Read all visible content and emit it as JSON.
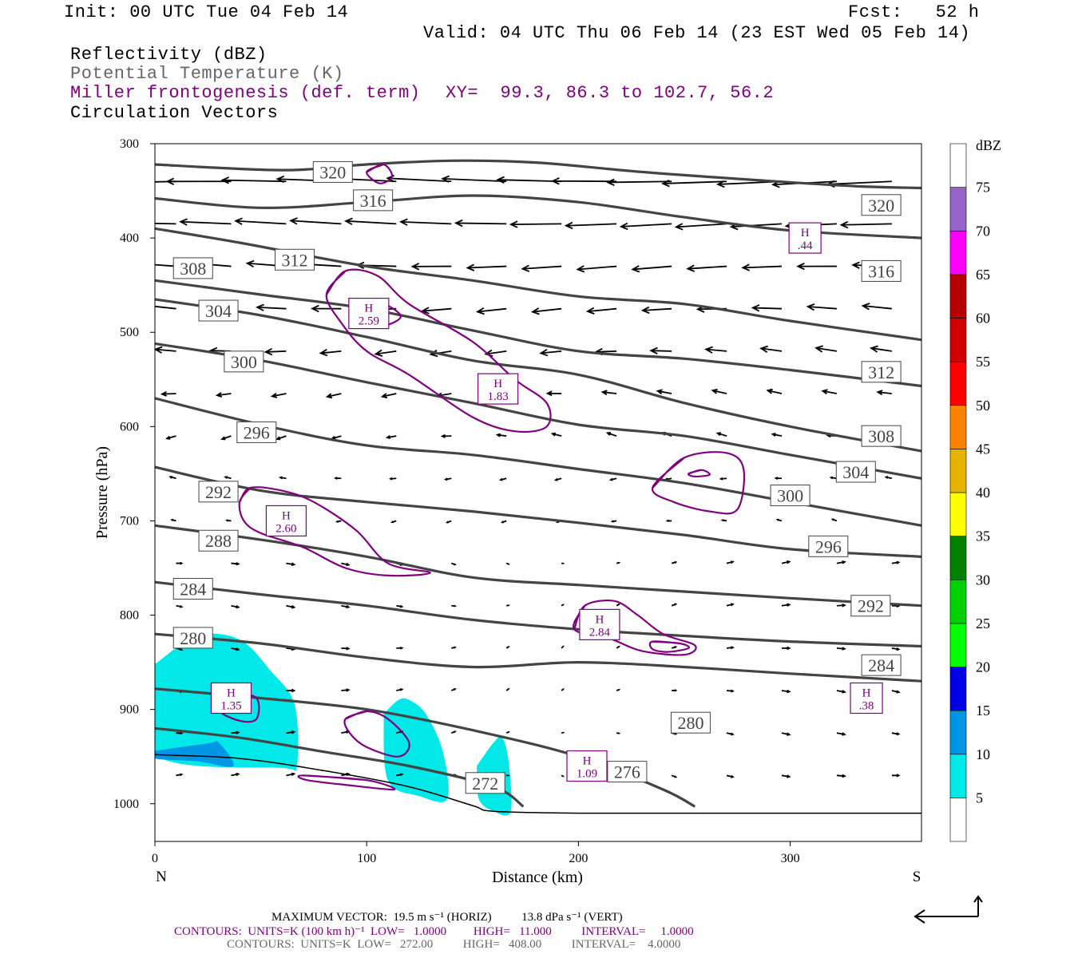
{
  "header": {
    "init": "Init: 00 UTC Tue 04 Feb 14",
    "fcst": "Fcst:   52 h",
    "valid": "Valid: 04 UTC Thu 06 Feb 14 (23 EST Wed 05 Feb 14)",
    "field1": "Reflectivity (dBZ)",
    "field2": "Potential Temperature (K)",
    "field3": "Miller frontogenesis (def. term)",
    "xy": "XY=  99.3, 86.3 to 102.7, 56.2",
    "field4": "Circulation Vectors"
  },
  "footer": {
    "maxvec": "MAXIMUM VECTOR:  19.5 m s⁻¹ (HORIZ)          13.8 dPa s⁻¹ (VERT)",
    "contours1": "CONTOURS:  UNITS=K (100 km h)⁻¹  LOW=   1.0000         HIGH=   11.000          INTERVAL=     1.0000",
    "contours2": "CONTOURS:  UNITS=K  LOW=   272.00          HIGH=   408.00          INTERVAL=    4.0000"
  },
  "colors": {
    "theta": "#444444",
    "fronto": "#800080",
    "refl5": "#00e8e8",
    "refl10": "#0096e6"
  },
  "chart_data": {
    "type": "cross-section",
    "xlabel": "Distance (km)",
    "ylabel": "Pressure (hPa)",
    "x_left_label": "N",
    "x_right_label": "S",
    "xlim": [
      0,
      362
    ],
    "ylim": [
      300,
      1040
    ],
    "xticks": [
      0,
      100,
      200,
      300
    ],
    "yticks": [
      300,
      400,
      500,
      600,
      700,
      800,
      900,
      1000
    ],
    "colorbar": {
      "unit": "dBZ",
      "levels": [
        5,
        10,
        15,
        20,
        25,
        30,
        35,
        40,
        45,
        50,
        55,
        60,
        65,
        70,
        75
      ],
      "colors": [
        "#00e8e8",
        "#0096e6",
        "#0000e6",
        "#00ff00",
        "#00d200",
        "#008200",
        "#ffff00",
        "#e6b400",
        "#ff8200",
        "#ff0000",
        "#d20000",
        "#b40000",
        "#ff00ff",
        "#9664c8",
        "#ffffff"
      ]
    },
    "theta_lines": [
      {
        "label": "320",
        "x": [
          0,
          60,
          100,
          140,
          180,
          230,
          280,
          330,
          362
        ],
        "y": [
          322,
          328,
          322,
          318,
          320,
          330,
          338,
          345,
          347
        ]
      },
      {
        "label": "316",
        "x": [
          0,
          50,
          100,
          150,
          200,
          250,
          300,
          362
        ],
        "y": [
          358,
          368,
          362,
          355,
          362,
          378,
          392,
          400
        ]
      },
      {
        "label": "312",
        "x": [
          0,
          40,
          100,
          150,
          200,
          250,
          300,
          362
        ],
        "y": [
          390,
          405,
          430,
          445,
          462,
          470,
          488,
          508
        ]
      },
      {
        "label": "308",
        "x": [
          0,
          50,
          100,
          150,
          200,
          250,
          300,
          362
        ],
        "y": [
          445,
          460,
          475,
          498,
          520,
          528,
          540,
          557
        ]
      },
      {
        "label": "304",
        "x": [
          0,
          50,
          100,
          150,
          200,
          250,
          300,
          362
        ],
        "y": [
          465,
          482,
          505,
          530,
          545,
          575,
          600,
          626
        ]
      },
      {
        "label": "300",
        "x": [
          0,
          50,
          100,
          150,
          200,
          250,
          300,
          362
        ],
        "y": [
          512,
          530,
          553,
          575,
          598,
          610,
          630,
          655
        ]
      },
      {
        "label": "296",
        "x": [
          0,
          50,
          100,
          150,
          200,
          250,
          300,
          362
        ],
        "y": [
          570,
          598,
          620,
          630,
          645,
          660,
          680,
          705
        ]
      },
      {
        "label": "292",
        "x": [
          0,
          50,
          100,
          150,
          200,
          250,
          300,
          362
        ],
        "y": [
          643,
          668,
          680,
          690,
          702,
          715,
          730,
          738
        ]
      },
      {
        "label": "288",
        "x": [
          0,
          50,
          100,
          150,
          200,
          250,
          300,
          362
        ],
        "y": [
          705,
          720,
          738,
          760,
          768,
          775,
          782,
          790
        ]
      },
      {
        "label": "284",
        "x": [
          0,
          50,
          100,
          150,
          200,
          250,
          300,
          362
        ],
        "y": [
          765,
          778,
          790,
          805,
          815,
          822,
          828,
          833
        ]
      },
      {
        "label": "280",
        "x": [
          0,
          50,
          100,
          150,
          200,
          250,
          300,
          362
        ],
        "y": [
          820,
          830,
          845,
          855,
          850,
          855,
          862,
          870
        ]
      },
      {
        "label": "276",
        "x": [
          0,
          50,
          100,
          150,
          200,
          240,
          255
        ],
        "y": [
          878,
          888,
          900,
          922,
          950,
          985,
          1003
        ]
      },
      {
        "label": "272",
        "x": [
          0,
          40,
          80,
          120,
          160,
          174
        ],
        "y": [
          920,
          930,
          945,
          960,
          982,
          1003
        ]
      }
    ],
    "theta_labels": [
      {
        "t": "320",
        "x": 84,
        "y": 330
      },
      {
        "t": "316",
        "x": 103,
        "y": 360
      },
      {
        "t": "308",
        "x": 18,
        "y": 432
      },
      {
        "t": "312",
        "x": 66,
        "y": 423
      },
      {
        "t": "304",
        "x": 30,
        "y": 477
      },
      {
        "t": "300",
        "x": 42,
        "y": 531
      },
      {
        "t": "296",
        "x": 48,
        "y": 606
      },
      {
        "t": "292",
        "x": 30,
        "y": 669
      },
      {
        "t": "288",
        "x": 30,
        "y": 721
      },
      {
        "t": "284",
        "x": 18,
        "y": 772
      },
      {
        "t": "280",
        "x": 18,
        "y": 824
      },
      {
        "t": "320",
        "x": 343,
        "y": 365
      },
      {
        "t": "316",
        "x": 343,
        "y": 435
      },
      {
        "t": "312",
        "x": 343,
        "y": 542
      },
      {
        "t": "308",
        "x": 343,
        "y": 610
      },
      {
        "t": "304",
        "x": 331,
        "y": 648
      },
      {
        "t": "300",
        "x": 300,
        "y": 673
      },
      {
        "t": "296",
        "x": 318,
        "y": 727
      },
      {
        "t": "292",
        "x": 338,
        "y": 790
      },
      {
        "t": "284",
        "x": 343,
        "y": 853
      },
      {
        "t": "280",
        "x": 253,
        "y": 914
      },
      {
        "t": "276",
        "x": 223,
        "y": 966
      },
      {
        "t": "272",
        "x": 156,
        "y": 978
      }
    ],
    "fronto_maxima": [
      {
        "v": "2.59",
        "x": 101,
        "y": 480
      },
      {
        "v": "1.83",
        "x": 162,
        "y": 560
      },
      {
        "v": "2.60",
        "x": 62,
        "y": 700
      },
      {
        "v": "2.84",
        "x": 210,
        "y": 810
      },
      {
        "v": "1.35",
        "x": 36,
        "y": 888
      },
      {
        "v": "1.09",
        "x": 204,
        "y": 960
      },
      {
        "v": ".44",
        "x": 307,
        "y": 400
      },
      {
        "v": ".38",
        "x": 336,
        "y": 888
      }
    ]
  }
}
